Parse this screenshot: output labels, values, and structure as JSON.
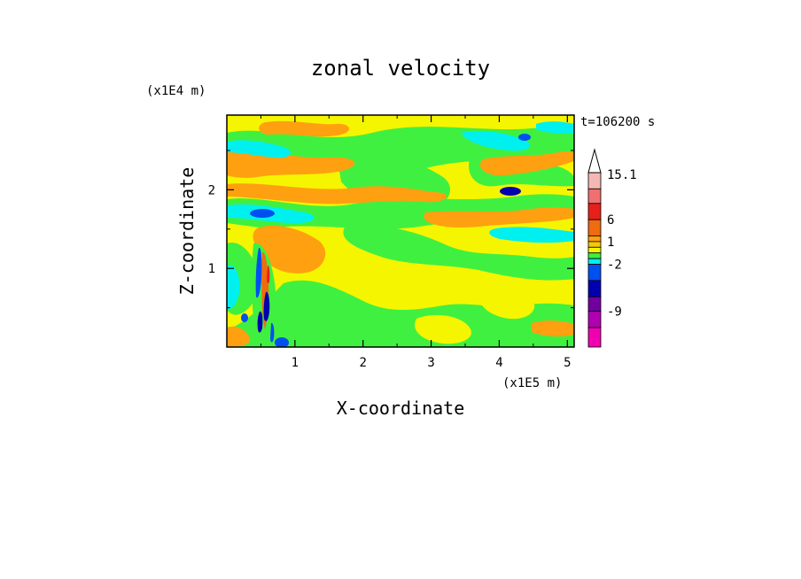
{
  "chart_data": {
    "type": "heatmap",
    "title": "zonal velocity",
    "xlabel": "X-coordinate",
    "ylabel": "Z-coordinate",
    "x_scale_note": "(x1E5 m)",
    "y_scale_note": "(x1E4 m)",
    "time_label": "t=106200 s",
    "xlim": [
      0,
      5.1
    ],
    "ylim": [
      0,
      2.95
    ],
    "x_ticks": [
      "1",
      "2",
      "3",
      "4",
      "5"
    ],
    "y_ticks": [
      "1",
      "2"
    ],
    "colorbar": {
      "tick_labels": [
        "15.1",
        "6",
        "1",
        "-2",
        "-9"
      ],
      "levels_top_to_bottom": [
        {
          "color": "#f4b8b4"
        },
        {
          "color": "#f07070"
        },
        {
          "color": "#e8201c"
        },
        {
          "color": "#f06a10"
        },
        {
          "color": "#ffa010"
        },
        {
          "color": "#f5c800"
        },
        {
          "color": "#f5f500"
        },
        {
          "color": "#40f040"
        },
        {
          "color": "#00f0f0"
        },
        {
          "color": "#0050f0"
        },
        {
          "color": "#0000b0"
        },
        {
          "color": "#7000a0"
        },
        {
          "color": "#b000b0"
        },
        {
          "color": "#f000b0"
        }
      ]
    }
  }
}
